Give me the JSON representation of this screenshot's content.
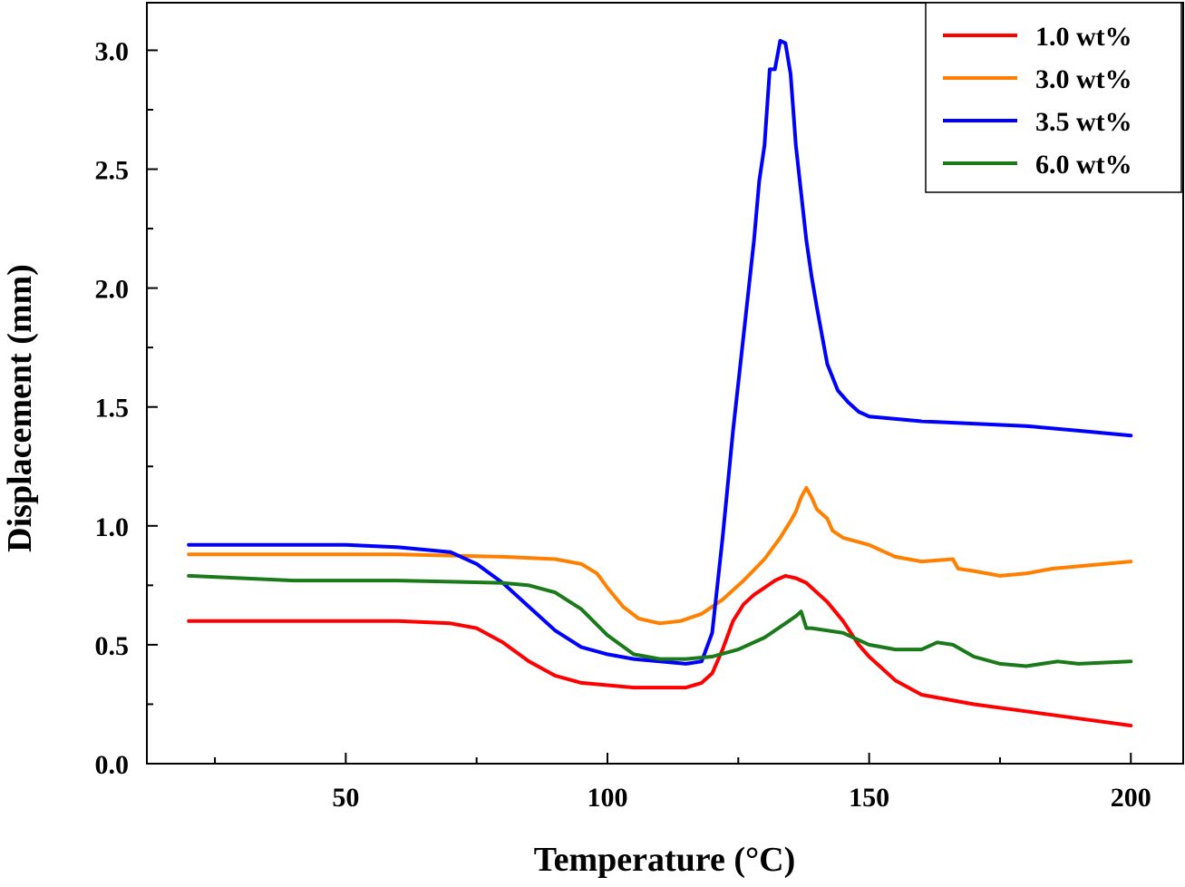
{
  "chart_data": {
    "type": "line",
    "title": "",
    "xlabel": "Temperature (°C)",
    "ylabel": "Displacement (mm)",
    "xlim": [
      12,
      210
    ],
    "ylim": [
      0.0,
      3.2
    ],
    "xticks": [
      50,
      100,
      150,
      200
    ],
    "xtick_labels": [
      "50",
      "100",
      "150",
      "200"
    ],
    "yticks": [
      0.0,
      0.5,
      1.0,
      1.5,
      2.0,
      2.5,
      3.0
    ],
    "ytick_labels": [
      "0.0",
      "0.5",
      "1.0",
      "1.5",
      "2.0",
      "2.5",
      "3.0"
    ],
    "grid": false,
    "legend_position": "top-right",
    "series": [
      {
        "name": "1.0 wt%",
        "color": "#ff0000",
        "x": [
          20,
          40,
          60,
          70,
          75,
          80,
          85,
          90,
          95,
          100,
          105,
          110,
          115,
          118,
          120,
          122,
          124,
          126,
          128,
          130,
          132,
          134,
          136,
          138,
          140,
          142,
          145,
          148,
          150,
          155,
          160,
          170,
          180,
          190,
          200
        ],
        "y": [
          0.6,
          0.6,
          0.6,
          0.59,
          0.57,
          0.51,
          0.43,
          0.37,
          0.34,
          0.33,
          0.32,
          0.32,
          0.32,
          0.34,
          0.38,
          0.48,
          0.6,
          0.67,
          0.71,
          0.74,
          0.77,
          0.79,
          0.78,
          0.76,
          0.72,
          0.68,
          0.6,
          0.5,
          0.45,
          0.35,
          0.29,
          0.25,
          0.22,
          0.19,
          0.16
        ]
      },
      {
        "name": "3.0 wt%",
        "color": "#ff8000",
        "x": [
          20,
          40,
          60,
          80,
          90,
          95,
          98,
          100,
          103,
          106,
          110,
          114,
          118,
          122,
          126,
          130,
          133,
          135,
          136,
          137,
          138,
          139,
          140,
          142,
          143,
          145,
          150,
          155,
          160,
          166,
          167,
          170,
          175,
          180,
          185,
          190,
          200
        ],
        "y": [
          0.88,
          0.88,
          0.88,
          0.87,
          0.86,
          0.84,
          0.8,
          0.74,
          0.66,
          0.61,
          0.59,
          0.6,
          0.63,
          0.69,
          0.77,
          0.86,
          0.95,
          1.02,
          1.06,
          1.12,
          1.16,
          1.12,
          1.07,
          1.03,
          0.98,
          0.95,
          0.92,
          0.87,
          0.85,
          0.86,
          0.82,
          0.81,
          0.79,
          0.8,
          0.82,
          0.83,
          0.85
        ]
      },
      {
        "name": "3.5 wt%",
        "color": "#0000ff",
        "x": [
          20,
          50,
          60,
          70,
          75,
          80,
          85,
          90,
          95,
          100,
          105,
          110,
          115,
          118,
          120,
          122,
          124,
          126,
          128,
          129,
          130,
          131,
          132,
          133,
          134,
          135,
          136,
          137,
          138,
          139,
          140,
          141,
          142,
          144,
          146,
          148,
          150,
          160,
          170,
          180,
          190,
          200
        ],
        "y": [
          0.92,
          0.92,
          0.91,
          0.89,
          0.84,
          0.76,
          0.66,
          0.56,
          0.49,
          0.46,
          0.44,
          0.43,
          0.42,
          0.43,
          0.55,
          0.95,
          1.4,
          1.8,
          2.2,
          2.45,
          2.6,
          2.92,
          2.92,
          3.04,
          3.03,
          2.9,
          2.6,
          2.4,
          2.2,
          2.05,
          1.92,
          1.8,
          1.68,
          1.57,
          1.52,
          1.48,
          1.46,
          1.44,
          1.43,
          1.42,
          1.4,
          1.38
        ]
      },
      {
        "name": "6.0 wt%",
        "color": "#1a7a1a",
        "x": [
          20,
          30,
          40,
          60,
          80,
          85,
          90,
          95,
          100,
          105,
          110,
          115,
          120,
          125,
          130,
          134,
          136,
          137,
          138,
          139,
          145,
          150,
          155,
          160,
          163,
          166,
          170,
          175,
          180,
          186,
          190,
          200
        ],
        "y": [
          0.79,
          0.78,
          0.77,
          0.77,
          0.76,
          0.75,
          0.72,
          0.65,
          0.54,
          0.46,
          0.44,
          0.44,
          0.45,
          0.48,
          0.53,
          0.59,
          0.62,
          0.64,
          0.57,
          0.57,
          0.55,
          0.5,
          0.48,
          0.48,
          0.51,
          0.5,
          0.45,
          0.42,
          0.41,
          0.43,
          0.42,
          0.43
        ]
      }
    ]
  }
}
